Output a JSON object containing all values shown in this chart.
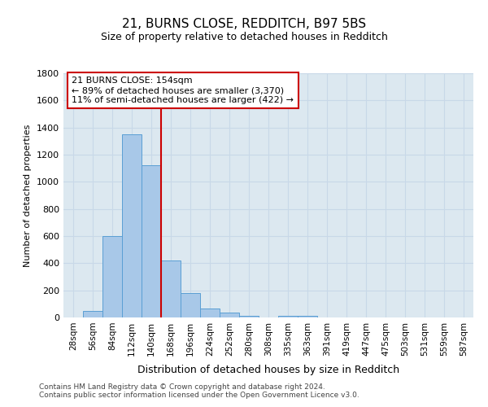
{
  "title1": "21, BURNS CLOSE, REDDITCH, B97 5BS",
  "title2": "Size of property relative to detached houses in Redditch",
  "xlabel": "Distribution of detached houses by size in Redditch",
  "ylabel": "Number of detached properties",
  "categories": [
    "28sqm",
    "56sqm",
    "84sqm",
    "112sqm",
    "140sqm",
    "168sqm",
    "196sqm",
    "224sqm",
    "252sqm",
    "280sqm",
    "308sqm",
    "335sqm",
    "363sqm",
    "391sqm",
    "419sqm",
    "447sqm",
    "475sqm",
    "503sqm",
    "531sqm",
    "559sqm",
    "587sqm"
  ],
  "values": [
    0,
    50,
    600,
    1350,
    1120,
    420,
    180,
    65,
    35,
    10,
    0,
    15,
    15,
    0,
    0,
    0,
    0,
    0,
    0,
    0,
    0
  ],
  "bar_color": "#a8c8e8",
  "bar_edge_color": "#5a9fd4",
  "vline_x": 4.5,
  "vline_color": "#cc0000",
  "ylim": [
    0,
    1800
  ],
  "yticks": [
    0,
    200,
    400,
    600,
    800,
    1000,
    1200,
    1400,
    1600,
    1800
  ],
  "annotation_text": "21 BURNS CLOSE: 154sqm\n← 89% of detached houses are smaller (3,370)\n11% of semi-detached houses are larger (422) →",
  "annotation_box_color": "#ffffff",
  "annotation_box_edge": "#cc0000",
  "footer": "Contains HM Land Registry data © Crown copyright and database right 2024.\nContains public sector information licensed under the Open Government Licence v3.0.",
  "grid_color": "#c8d8e8",
  "bg_color": "#dce8f0"
}
